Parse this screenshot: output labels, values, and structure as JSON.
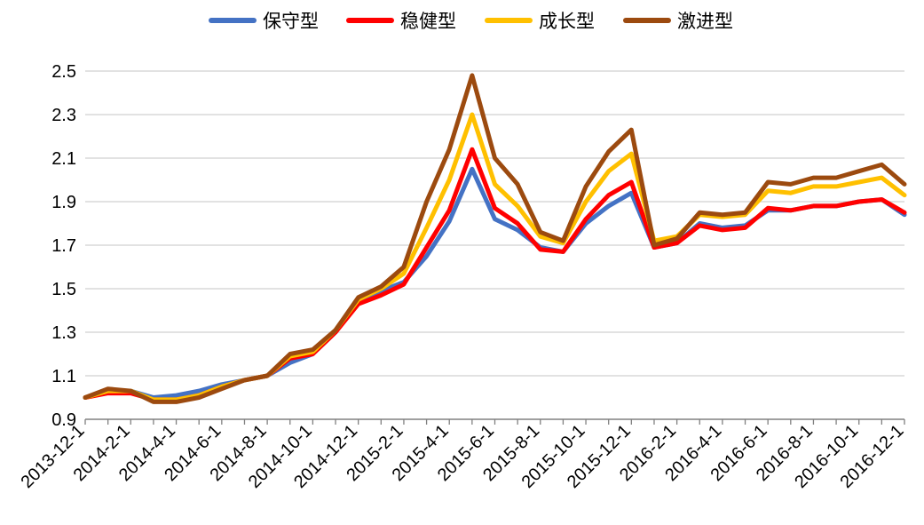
{
  "chart_data": {
    "type": "line",
    "title": "",
    "xlabel": "",
    "ylabel": "",
    "ylim": [
      0.9,
      2.5
    ],
    "yticks": [
      "0.9",
      "1.1",
      "1.3",
      "1.5",
      "1.7",
      "1.9",
      "2.1",
      "2.3",
      "2.5"
    ],
    "grid": "horizontal",
    "legend_position": "top",
    "x": [
      "2013-12-1",
      "2014-1-1",
      "2014-2-1",
      "2014-3-1",
      "2014-4-1",
      "2014-5-1",
      "2014-6-1",
      "2014-7-1",
      "2014-8-1",
      "2014-9-1",
      "2014-10-1",
      "2014-11-1",
      "2014-12-1",
      "2015-1-1",
      "2015-2-1",
      "2015-3-1",
      "2015-4-1",
      "2015-5-1",
      "2015-6-1",
      "2015-7-1",
      "2015-8-1",
      "2015-9-1",
      "2015-10-1",
      "2015-11-1",
      "2015-12-1",
      "2016-1-1",
      "2016-2-1",
      "2016-3-1",
      "2016-4-1",
      "2016-5-1",
      "2016-6-1",
      "2016-7-1",
      "2016-8-1",
      "2016-9-1",
      "2016-10-1",
      "2016-11-1",
      "2016-12-1"
    ],
    "xtick_labels": [
      "2013-12-1",
      "2014-2-1",
      "2014-4-1",
      "2014-6-1",
      "2014-8-1",
      "2014-10-1",
      "2014-12-1",
      "2015-2-1",
      "2015-4-1",
      "2015-6-1",
      "2015-8-1",
      "2015-10-1",
      "2015-12-1",
      "2016-2-1",
      "2016-4-1",
      "2016-6-1",
      "2016-8-1",
      "2016-10-1",
      "2016-12-1"
    ],
    "series": [
      {
        "name": "保守型",
        "color": "#4472C4",
        "values": [
          1.0,
          1.03,
          1.03,
          1.0,
          1.01,
          1.03,
          1.06,
          1.08,
          1.1,
          1.16,
          1.2,
          1.3,
          1.45,
          1.49,
          1.53,
          1.65,
          1.81,
          2.05,
          1.82,
          1.77,
          1.69,
          1.67,
          1.8,
          1.88,
          1.94,
          1.69,
          1.71,
          1.8,
          1.78,
          1.79,
          1.86,
          1.86,
          1.88,
          1.88,
          1.9,
          1.91,
          1.84
        ]
      },
      {
        "name": "稳健型",
        "color": "#FF0000",
        "values": [
          1.0,
          1.02,
          1.02,
          0.99,
          0.99,
          1.01,
          1.05,
          1.08,
          1.1,
          1.18,
          1.2,
          1.3,
          1.43,
          1.47,
          1.52,
          1.69,
          1.86,
          2.14,
          1.87,
          1.8,
          1.68,
          1.67,
          1.82,
          1.93,
          1.99,
          1.69,
          1.71,
          1.79,
          1.77,
          1.78,
          1.87,
          1.86,
          1.88,
          1.88,
          1.9,
          1.91,
          1.85
        ]
      },
      {
        "name": "成长型",
        "color": "#FFC000",
        "values": [
          1.0,
          1.03,
          1.03,
          0.99,
          0.99,
          1.01,
          1.05,
          1.08,
          1.1,
          1.19,
          1.21,
          1.31,
          1.45,
          1.5,
          1.57,
          1.78,
          2.0,
          2.3,
          1.98,
          1.88,
          1.74,
          1.71,
          1.9,
          2.04,
          2.12,
          1.72,
          1.74,
          1.84,
          1.83,
          1.84,
          1.95,
          1.94,
          1.97,
          1.97,
          1.99,
          2.01,
          1.93
        ]
      },
      {
        "name": "激进型",
        "color": "#9C4A0F",
        "values": [
          1.0,
          1.04,
          1.03,
          0.98,
          0.98,
          1.0,
          1.04,
          1.08,
          1.1,
          1.2,
          1.22,
          1.31,
          1.46,
          1.51,
          1.6,
          1.9,
          2.14,
          2.48,
          2.1,
          1.98,
          1.76,
          1.72,
          1.97,
          2.13,
          2.23,
          1.7,
          1.73,
          1.85,
          1.84,
          1.85,
          1.99,
          1.98,
          2.01,
          2.01,
          2.04,
          2.07,
          1.98
        ]
      }
    ]
  }
}
